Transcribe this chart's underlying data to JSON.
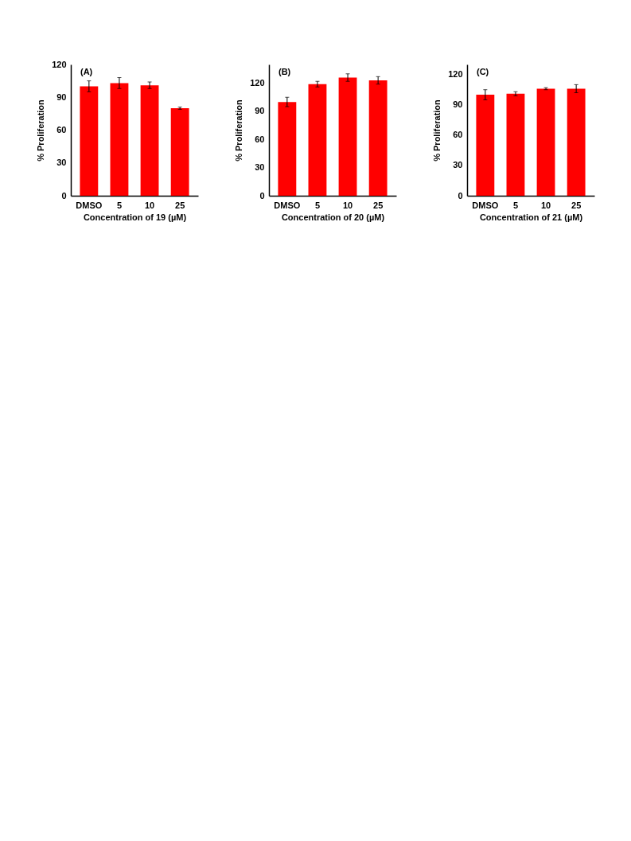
{
  "chart_data": [
    {
      "type": "bar",
      "annotations": [
        "(A)"
      ],
      "xlabel": "Concentration of 19 (µM)",
      "ylabel": "% Proliferation",
      "categories": [
        "DMSO",
        "5",
        "10",
        "25"
      ],
      "values": [
        100,
        103,
        101,
        80
      ],
      "errors": [
        5,
        5,
        3,
        1
      ],
      "color": "#ff0000",
      "ylim": [
        0,
        120
      ],
      "yticks": [
        0,
        30,
        60,
        90,
        120
      ],
      "grid": false
    },
    {
      "type": "bar",
      "annotations": [
        "(B)"
      ],
      "xlabel": "Concentration of 20 (µM)",
      "ylabel": "% Proliferation",
      "categories": [
        "DMSO",
        "5",
        "10",
        "25"
      ],
      "values": [
        100,
        119,
        126,
        123
      ],
      "errors": [
        5,
        3,
        4,
        4
      ],
      "color": "#ff0000",
      "ylim": [
        0,
        140
      ],
      "yticks": [
        0,
        30,
        60,
        90,
        120
      ],
      "grid": false
    },
    {
      "type": "bar",
      "annotations": [
        "(C)"
      ],
      "xlabel": "Concentration of 21 (µM)",
      "ylabel": "% Proliferation",
      "categories": [
        "DMSO",
        "5",
        "10",
        "25"
      ],
      "values": [
        100,
        101,
        106,
        106
      ],
      "errors": [
        5,
        2,
        1,
        4
      ],
      "color": "#ff0000",
      "ylim": [
        0,
        130
      ],
      "yticks": [
        0,
        30,
        60,
        90,
        120
      ],
      "grid": false
    }
  ]
}
